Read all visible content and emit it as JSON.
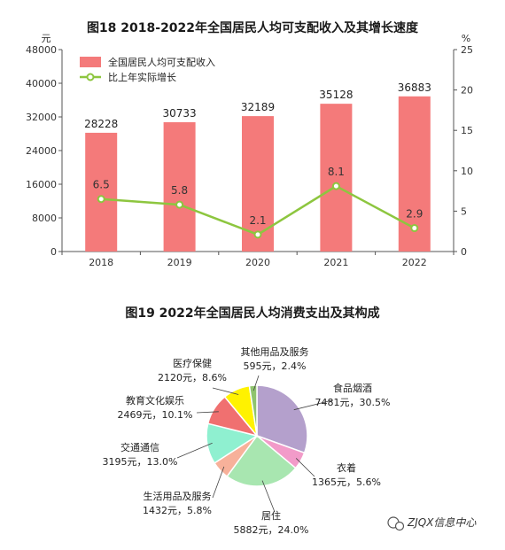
{
  "chart_data": [
    {
      "type": "bar",
      "title": "图18    2018-2022年全国居民人均可支配收入及其增长速度",
      "y_unit_left": "元",
      "y_unit_right": "%",
      "categories": [
        "2018",
        "2019",
        "2020",
        "2021",
        "2022"
      ],
      "ylim_left": [
        0,
        48000
      ],
      "yticks_left": [
        "0",
        "8000",
        "16000",
        "24000",
        "32000",
        "40000",
        "48000"
      ],
      "ylim_right": [
        0,
        25
      ],
      "yticks_right": [
        "0",
        "5",
        "10",
        "15",
        "20",
        "25"
      ],
      "series": [
        {
          "name": "全国居民人均可支配收入",
          "type": "bar",
          "axis": "left",
          "values": [
            28228,
            30733,
            32189,
            35128,
            36883
          ],
          "labels": [
            "28228",
            "30733",
            "32189",
            "35128",
            "36883"
          ]
        },
        {
          "name": "比上年实际增长",
          "type": "line",
          "axis": "right",
          "values": [
            6.5,
            5.8,
            2.1,
            8.1,
            2.9
          ],
          "labels": [
            "6.5",
            "5.8",
            "2.1",
            "8.1",
            "2.9"
          ]
        }
      ],
      "legend": "top-left",
      "colors": {
        "bar": "#f47a7a",
        "line": "#8dc63f",
        "marker_fill": "#ffffff",
        "axis": "#555555"
      }
    },
    {
      "type": "pie",
      "title": "图19    2022年全国居民人均消费支出及其构成",
      "slices": [
        {
          "name": "食品烟酒",
          "detail": "7481元，30.5%",
          "value": 30.5,
          "color": "#b4a0cc"
        },
        {
          "name": "衣着",
          "detail": "1365元，5.6%",
          "value": 5.6,
          "color": "#f29bc9"
        },
        {
          "name": "居住",
          "detail": "5882元，24.0%",
          "value": 24.0,
          "color": "#a8e6b0"
        },
        {
          "name": "生活用品及服务",
          "detail": "1432元，5.8%",
          "value": 5.8,
          "color": "#f7b19a"
        },
        {
          "name": "交通通信",
          "detail": "3195元，13.0%",
          "value": 13.0,
          "color": "#8ff0d0"
        },
        {
          "name": "教育文化娱乐",
          "detail": "2469元，10.1%",
          "value": 10.1,
          "color": "#f07070"
        },
        {
          "name": "医疗保健",
          "detail": "2120元，8.6%",
          "value": 8.6,
          "color": "#fff200"
        },
        {
          "name": "其他用品及服务",
          "detail": "595元，2.4%",
          "value": 2.4,
          "color": "#8fc46e"
        }
      ]
    }
  ],
  "watermark": "ZJQX信息中心"
}
